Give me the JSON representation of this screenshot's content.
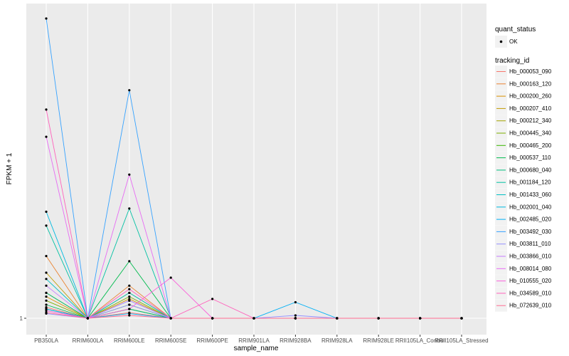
{
  "chart_data": {
    "type": "line",
    "title": "",
    "xlabel": "sample_name",
    "ylabel": "FPKM + 1",
    "y_tick_labels": [
      "1"
    ],
    "y_scale": "log",
    "grid": true,
    "legend_placement": "right",
    "categories": [
      "PB350LA",
      "RRIM600LA",
      "RRIM600LE",
      "RRIM600SE",
      "RRIM600PE",
      "RRIM901LA",
      "RRIM928BA",
      "RRIM928LA",
      "RRIM928LE",
      "RRII105LA_Control",
      "RRII105LA_Stressed"
    ],
    "tick_labels": [
      "PB350LA",
      "RRIM600LA",
      "RRIM600LE",
      "RRIM600SE",
      "RRIM600PE",
      "RRIM901LA",
      "RRIM928BA",
      "RRIM928LA",
      "RRIM928LE",
      "RRII105LA_Control",
      "RRII105LA_Stressed"
    ],
    "point_legend": {
      "title": "quant_status",
      "entries": [
        {
          "label": "OK"
        }
      ]
    },
    "line_legend_title": "tracking_id",
    "series": [
      {
        "name": "Hb_000053_090",
        "color": "#F8766D",
        "values": [
          1.12,
          1,
          1.06,
          1,
          1,
          1,
          1,
          1,
          1,
          1,
          1
        ]
      },
      {
        "name": "Hb_000163_120",
        "color": "#EA8331",
        "values": [
          1.9,
          1,
          1.4,
          1,
          1,
          1,
          1,
          1,
          1,
          1,
          1
        ]
      },
      {
        "name": "Hb_000200_260",
        "color": "#D89000",
        "values": [
          1.25,
          1,
          1.22,
          1,
          1,
          1,
          1,
          1,
          1,
          1,
          1
        ]
      },
      {
        "name": "Hb_000207_410",
        "color": "#C09B00",
        "values": [
          1.6,
          1,
          1.3,
          1,
          1,
          1,
          1,
          1,
          1,
          1,
          1
        ]
      },
      {
        "name": "Hb_000212_340",
        "color": "#A3A500",
        "values": [
          1.3,
          1,
          1.1,
          1,
          1,
          1,
          1,
          1,
          1,
          1,
          1
        ]
      },
      {
        "name": "Hb_000445_340",
        "color": "#7CAE00",
        "values": [
          1.2,
          1,
          1.25,
          1,
          1,
          1,
          1,
          1,
          1,
          1,
          1
        ]
      },
      {
        "name": "Hb_000465_200",
        "color": "#39B600",
        "values": [
          1.1,
          1,
          1.15,
          1,
          1,
          1,
          1,
          1,
          1,
          1,
          1
        ]
      },
      {
        "name": "Hb_000537_110",
        "color": "#00BB4E",
        "values": [
          1.15,
          1,
          1.8,
          1,
          1,
          1,
          1,
          1,
          1,
          1,
          1
        ]
      },
      {
        "name": "Hb_000680_040",
        "color": "#00BF7D",
        "values": [
          1.3,
          1,
          1.1,
          1,
          1,
          1,
          1,
          1,
          1,
          1,
          1
        ]
      },
      {
        "name": "Hb_001184_120",
        "color": "#00C1A3",
        "values": [
          2.6,
          1,
          3.1,
          1,
          1,
          1,
          1,
          1,
          1,
          1,
          1
        ]
      },
      {
        "name": "Hb_001433_060",
        "color": "#00BFC4",
        "values": [
          1.5,
          1,
          1.3,
          1,
          1,
          1,
          1,
          1,
          1,
          1,
          1
        ]
      },
      {
        "name": "Hb_002001_040",
        "color": "#00BAE0",
        "values": [
          3.0,
          1,
          1.2,
          1,
          1,
          1,
          1,
          1,
          1,
          1,
          1
        ]
      },
      {
        "name": "Hb_002485_020",
        "color": "#00B0F6",
        "values": [
          1.1,
          1,
          1.05,
          1,
          1,
          1,
          1.18,
          1,
          1,
          1,
          1
        ]
      },
      {
        "name": "Hb_003492_030",
        "color": "#35A2FF",
        "values": [
          22,
          1,
          10.5,
          1,
          1,
          1,
          1,
          1,
          1,
          1,
          1
        ]
      },
      {
        "name": "Hb_003811_010",
        "color": "#9590FF",
        "values": [
          1.05,
          1,
          1.15,
          1,
          1,
          1,
          1.03,
          1,
          1,
          1,
          1
        ]
      },
      {
        "name": "Hb_003866_010",
        "color": "#C77CFF",
        "values": [
          1.4,
          1,
          1.2,
          1,
          1,
          1,
          1,
          1,
          1,
          1,
          1
        ]
      },
      {
        "name": "Hb_008014_080",
        "color": "#E76BF3",
        "values": [
          6.5,
          1,
          4.4,
          1,
          1,
          1,
          1,
          1,
          1,
          1,
          1
        ]
      },
      {
        "name": "Hb_010555_020",
        "color": "#FA62DB",
        "values": [
          1.08,
          1,
          1.1,
          1.52,
          1,
          1,
          1,
          1,
          1,
          1,
          1
        ]
      },
      {
        "name": "Hb_034589_010",
        "color": "#FF62BC",
        "values": [
          8.6,
          1,
          1.35,
          1,
          1.22,
          1,
          1,
          1,
          1,
          1,
          1
        ]
      },
      {
        "name": "Hb_072639_010",
        "color": "#FF6C91",
        "values": [
          1.06,
          1,
          1.03,
          1,
          1,
          1,
          1,
          1,
          1,
          1,
          1
        ]
      }
    ]
  }
}
